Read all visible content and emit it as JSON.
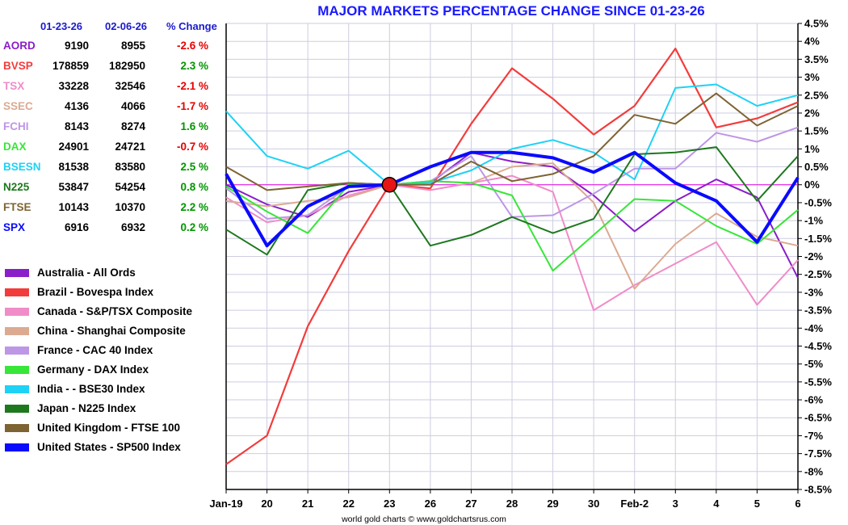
{
  "chart_data": {
    "type": "line",
    "title": "MAJOR MARKETS PERCENTAGE CHANGE SINCE 01-23-26",
    "x": [
      "Jan-19",
      "20",
      "21",
      "22",
      "23",
      "26",
      "27",
      "28",
      "29",
      "30",
      "Feb-2",
      "3",
      "4",
      "5",
      "6"
    ],
    "ylim": [
      -8.5,
      4.5
    ],
    "yticks": [
      "4.5%",
      "4%",
      "3.5%",
      "3%",
      "2.5%",
      "2%",
      "1.5%",
      "1%",
      "0.5%",
      "0%",
      "-0.5%",
      "-1%",
      "-1.5%",
      "-2%",
      "-2.5%",
      "-3%",
      "-3.5%",
      "-4%",
      "-4.5%",
      "-5%",
      "-5.5%",
      "-6%",
      "-6.5%",
      "-7%",
      "-7.5%",
      "-8%",
      "-8.5%"
    ],
    "yticks_values": [
      4.5,
      4,
      3.5,
      3,
      2.5,
      2,
      1.5,
      1,
      0.5,
      0,
      -0.5,
      -1,
      -1.5,
      -2,
      -2.5,
      -3,
      -3.5,
      -4,
      -4.5,
      -5,
      -5.5,
      -6,
      -6.5,
      -7,
      -7.5,
      -8,
      -8.5
    ],
    "marker_index": 4,
    "series": [
      {
        "name": "Australia - All Ords",
        "color": "#8a1ec8",
        "width": 2,
        "values": [
          0,
          -0.55,
          -0.9,
          -0.2,
          0,
          0.05,
          0.9,
          0.65,
          0.5,
          -0.3,
          -1.3,
          -0.45,
          0.15,
          -0.35,
          -2.6
        ]
      },
      {
        "name": "Brazil - Bovespa Index",
        "color": "#f23c3c",
        "width": 2.2,
        "values": [
          -7.8,
          -7.0,
          -3.95,
          -1.85,
          0,
          -0.1,
          1.7,
          3.25,
          2.4,
          1.4,
          2.2,
          3.8,
          1.6,
          1.85,
          2.3
        ]
      },
      {
        "name": "Canada - S&P/TSX Composite",
        "color": "#f08cc8",
        "width": 2,
        "values": [
          -0.35,
          -1.05,
          -0.85,
          -0.3,
          0,
          -0.15,
          0.05,
          0.25,
          -0.2,
          -3.5,
          -2.8,
          -2.2,
          -1.6,
          -3.35,
          -2.1
        ]
      },
      {
        "name": "China - Shanghai Composite",
        "color": "#dcaa91",
        "width": 2,
        "values": [
          -0.45,
          -0.6,
          -0.45,
          -0.35,
          0,
          0.1,
          0.05,
          0.5,
          0.6,
          -0.5,
          -2.9,
          -1.65,
          -0.8,
          -1.45,
          -1.7
        ]
      },
      {
        "name": "France - CAC 40 Index",
        "color": "#be96e6",
        "width": 2,
        "values": [
          -0.1,
          -0.95,
          -0.85,
          -0.05,
          0,
          0.1,
          0.8,
          -0.9,
          -0.85,
          -0.25,
          0.45,
          0.45,
          1.45,
          1.2,
          1.6
        ]
      },
      {
        "name": "Germany - DAX Index",
        "color": "#37e637",
        "width": 2,
        "values": [
          -0.05,
          -0.75,
          -1.35,
          0,
          0,
          0.1,
          0.05,
          -0.3,
          -2.4,
          -1.4,
          -0.4,
          -0.45,
          -1.15,
          -1.65,
          -0.7
        ]
      },
      {
        "name": "India -  - BSE30 Index",
        "color": "#1ed2f5",
        "width": 2,
        "values": [
          2.05,
          0.8,
          0.45,
          0.95,
          0,
          0.05,
          0.4,
          1.0,
          1.25,
          0.9,
          0.15,
          2.7,
          2.8,
          2.2,
          2.5
        ]
      },
      {
        "name": "Japan - N225 Index",
        "color": "#1e781e",
        "width": 2,
        "values": [
          -1.25,
          -1.95,
          -0.15,
          0.05,
          0,
          -1.7,
          -1.4,
          -0.9,
          -1.35,
          -0.95,
          0.85,
          0.9,
          1.05,
          -0.45,
          0.8
        ]
      },
      {
        "name": "United Kingdom - FTSE 100",
        "color": "#7d6432",
        "width": 2,
        "values": [
          0.5,
          -0.15,
          -0.05,
          0.05,
          0,
          0,
          0.65,
          0.1,
          0.3,
          0.8,
          1.95,
          1.7,
          2.55,
          1.65,
          2.2
        ]
      },
      {
        "name": "United States - SP500 Index",
        "color": "#0a0aff",
        "width": 4,
        "values": [
          0.3,
          -1.7,
          -0.6,
          -0.05,
          0,
          0.5,
          0.9,
          0.9,
          0.75,
          0.35,
          0.9,
          0.05,
          -0.45,
          -1.6,
          0.2
        ]
      }
    ]
  },
  "table": {
    "headers": {
      "date1": "01-23-26",
      "date2": "02-06-26",
      "change": "% Change"
    },
    "rows": [
      {
        "symbol": "AORD",
        "v1": "9190",
        "v2": "8955",
        "pct": "-2.6 %",
        "color": "#8a1ec8",
        "pct_color": "#e60000"
      },
      {
        "symbol": "BVSP",
        "v1": "178859",
        "v2": "182950",
        "pct": "2.3 %",
        "color": "#f23c3c",
        "pct_color": "#009600"
      },
      {
        "symbol": "TSX",
        "v1": "33228",
        "v2": "32546",
        "pct": "-2.1 %",
        "color": "#f08cc8",
        "pct_color": "#e60000"
      },
      {
        "symbol": "SSEC",
        "v1": "4136",
        "v2": "4066",
        "pct": "-1.7 %",
        "color": "#dcaa91",
        "pct_color": "#e60000"
      },
      {
        "symbol": "FCHI",
        "v1": "8143",
        "v2": "8274",
        "pct": "1.6 %",
        "color": "#be96e6",
        "pct_color": "#009600"
      },
      {
        "symbol": "DAX",
        "v1": "24901",
        "v2": "24721",
        "pct": "-0.7 %",
        "color": "#37e637",
        "pct_color": "#e60000"
      },
      {
        "symbol": "BSESN",
        "v1": "81538",
        "v2": "83580",
        "pct": "2.5 %",
        "color": "#1ed2f5",
        "pct_color": "#009600"
      },
      {
        "symbol": "N225",
        "v1": "53847",
        "v2": "54254",
        "pct": "0.8 %",
        "color": "#1e781e",
        "pct_color": "#009600"
      },
      {
        "symbol": "FTSE",
        "v1": "10143",
        "v2": "10370",
        "pct": "2.2 %",
        "color": "#7d6432",
        "pct_color": "#009600"
      },
      {
        "symbol": "SPX",
        "v1": "6916",
        "v2": "6932",
        "pct": "0.2 %",
        "color": "#0a0aff",
        "pct_color": "#009600"
      }
    ]
  },
  "footer": "world gold charts © www.goldchartsrus.com"
}
